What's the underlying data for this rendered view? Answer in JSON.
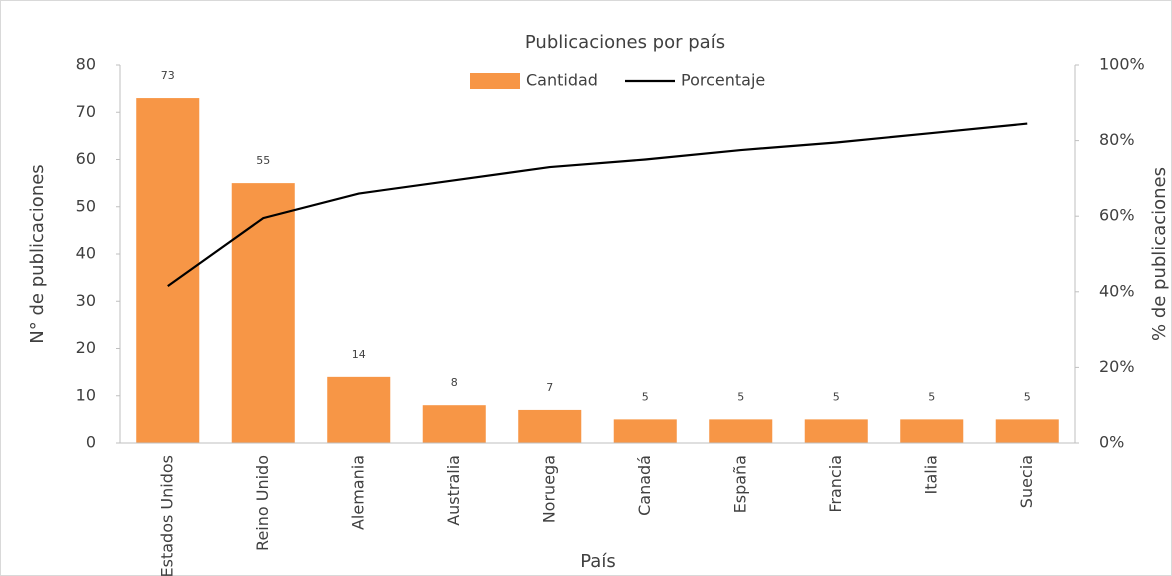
{
  "chart_data": {
    "type": "bar",
    "title": "Publicaciones por país",
    "categories": [
      "Estados Unidos",
      "Reino Unido",
      "Alemania",
      "Australia",
      "Noruega",
      "Canadá",
      "España",
      "Francia",
      "Italia",
      "Suecia"
    ],
    "series": [
      {
        "name": "Cantidad",
        "color": "#f79646",
        "values": [
          73,
          55,
          14,
          8,
          7,
          5,
          5,
          5,
          5,
          5
        ]
      },
      {
        "name": "Porcentaje",
        "color": "#000000",
        "type": "line",
        "axis": "y2",
        "values": [
          41.5,
          59.5,
          66,
          69.5,
          73,
          75,
          77.5,
          79.5,
          82,
          84.5
        ]
      }
    ],
    "x_label": "País",
    "y_label": "N° de publicaciones",
    "y2_label": "% de publicaciones",
    "ylim": [
      0,
      80
    ],
    "yticks": [
      0,
      10,
      20,
      30,
      40,
      50,
      60,
      70,
      80
    ],
    "y2lim": [
      0,
      100
    ],
    "y2ticks": [
      {
        "value": 0,
        "label": "0%"
      },
      {
        "value": 20,
        "label": "20%"
      },
      {
        "value": 40,
        "label": "40%"
      },
      {
        "value": 60,
        "label": "60%"
      },
      {
        "value": 80,
        "label": "80%"
      },
      {
        "value": 100,
        "label": "100%"
      }
    ],
    "grid": false,
    "legend": "top"
  }
}
